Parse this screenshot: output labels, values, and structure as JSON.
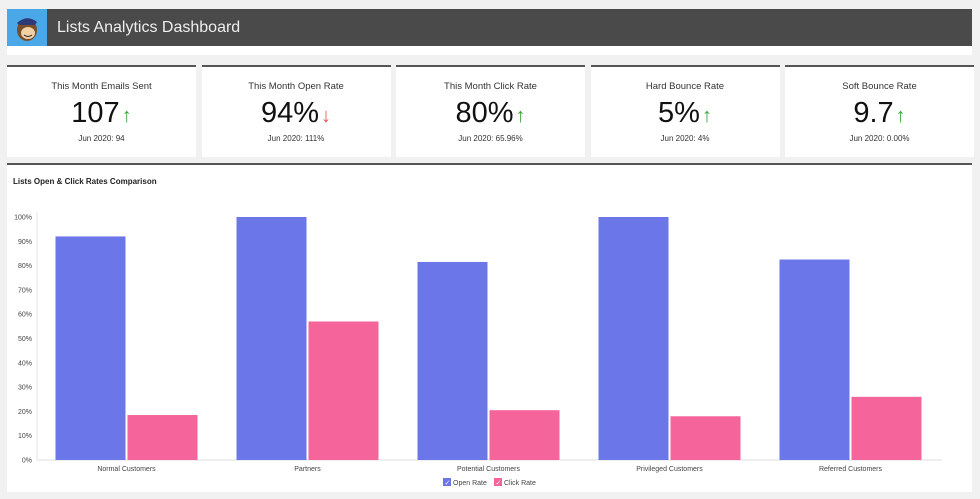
{
  "header": {
    "title": "Lists Analytics Dashboard",
    "logo": "mailchimp-monkey"
  },
  "kpis": [
    {
      "label": "This Month Emails Sent",
      "value": "107",
      "trend": "up",
      "previous": "Jun 2020: 94"
    },
    {
      "label": "This Month Open Rate",
      "value": "94%",
      "trend": "down",
      "previous": "Jun 2020: 111%"
    },
    {
      "label": "This Month Click Rate",
      "value": "80%",
      "trend": "up",
      "previous": "Jun 2020: 65.96%"
    },
    {
      "label": "Hard Bounce Rate",
      "value": "5%",
      "trend": "up",
      "previous": "Jun 2020: 4%"
    },
    {
      "label": "Soft Bounce Rate",
      "value": "9.7",
      "trend": "up",
      "previous": "Jun 2020: 0.00%"
    }
  ],
  "colors": {
    "up": "#3aa33a",
    "down": "#f05050",
    "open": "#6b77e8",
    "click": "#f5649a"
  },
  "chart_data": {
    "type": "bar",
    "title": "Lists Open & Click Rates Comparison",
    "categories": [
      "Normal Customers",
      "Partners",
      "Potential Customers",
      "Privileged Customers",
      "Referred Customers"
    ],
    "series": [
      {
        "name": "Open Rate",
        "values": [
          92,
          100,
          81.5,
          100,
          82.5
        ]
      },
      {
        "name": "Click Rate",
        "values": [
          18.5,
          57,
          20.5,
          18,
          26
        ]
      }
    ],
    "ylim": [
      0,
      100
    ],
    "yticks": [
      "0%",
      "10%",
      "20%",
      "30%",
      "40%",
      "50%",
      "60%",
      "70%",
      "80%",
      "90%",
      "100%"
    ],
    "grid": false,
    "legend": "bottom"
  }
}
